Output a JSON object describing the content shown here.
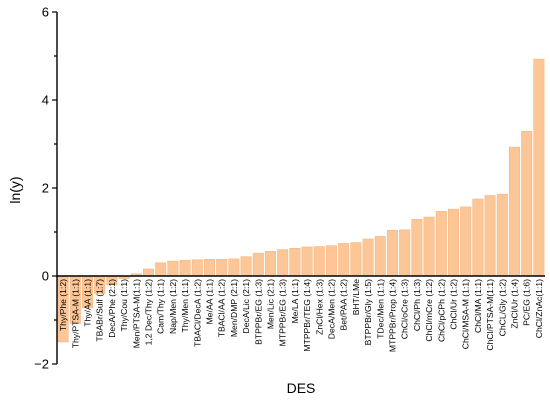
{
  "chart_data": {
    "type": "bar",
    "xlabel": "DES",
    "ylabel": "ln(y)",
    "ylim": [
      -2,
      6
    ],
    "yticks": [
      -2,
      0,
      2,
      4,
      6
    ],
    "grid": false,
    "legend": "none",
    "bar_color": "#FDC696",
    "bar_edge_color": "#F6B27A",
    "categories": [
      "Thy/Phe (1:2)",
      "Thy/PTSA-M (1:1)",
      "Thy/AA (1:1)",
      "TBABr/Sulf (1:7)",
      "DecA/Phe (2:1)",
      "Thy/Cou (1:1)",
      "Men/PTSA-M(1:1)",
      "1,2 Dec/Thy (1:2)",
      "Cam/Thy (1:1)",
      "Nap/Men (1:2)",
      "Thy/Men (1:1)",
      "TBACl/DecA (1:2)",
      "Me/AA (1:1)",
      "TBACl/AA (1:2)",
      "Men/DMP (2:1)",
      "DecA/Lic (2:1)",
      "BTPPBr/EG (1:3)",
      "Men/Lic (2:1)",
      "MTPPBr/EG (1:3)",
      "Me/LA (1:1)",
      "MTPPBr/TEG (1:4)",
      "ZnCl/Hex (1:3)",
      "DecA/Men (1:2)",
      "Bet/PAA (1:2)",
      "BHT/LMe",
      "BTPPBr/Gly (1:5)",
      "TDec/Men (1:1)",
      "MTPPBr/Prop (1:4)",
      "ChCl/oCre (1:3)",
      "ChCl/Ph (1:3)",
      "ChCl/mCre (1:2)",
      "ChCl/pCPh (1:2)",
      "ChCl/Ur (1:2)",
      "ChCl/MSA-M (1:1)",
      "ChCl/MA (1:1)",
      "ChCl/PTSA-M(1:1)",
      "ChCL/Gly (1:2)",
      "ZnCl/Ur (1:4)",
      "PC/EG (1:6)",
      "ChCl/ZnAc(1:1)"
    ],
    "values": [
      -1.5,
      -1.08,
      -0.72,
      -0.4,
      -0.2,
      -0.06,
      0.05,
      0.16,
      0.3,
      0.34,
      0.36,
      0.37,
      0.38,
      0.38,
      0.39,
      0.44,
      0.52,
      0.56,
      0.6,
      0.63,
      0.66,
      0.67,
      0.69,
      0.74,
      0.76,
      0.84,
      0.9,
      1.04,
      1.05,
      1.29,
      1.34,
      1.47,
      1.52,
      1.57,
      1.75,
      1.83,
      1.86,
      2.93,
      3.29,
      4.93
    ]
  }
}
